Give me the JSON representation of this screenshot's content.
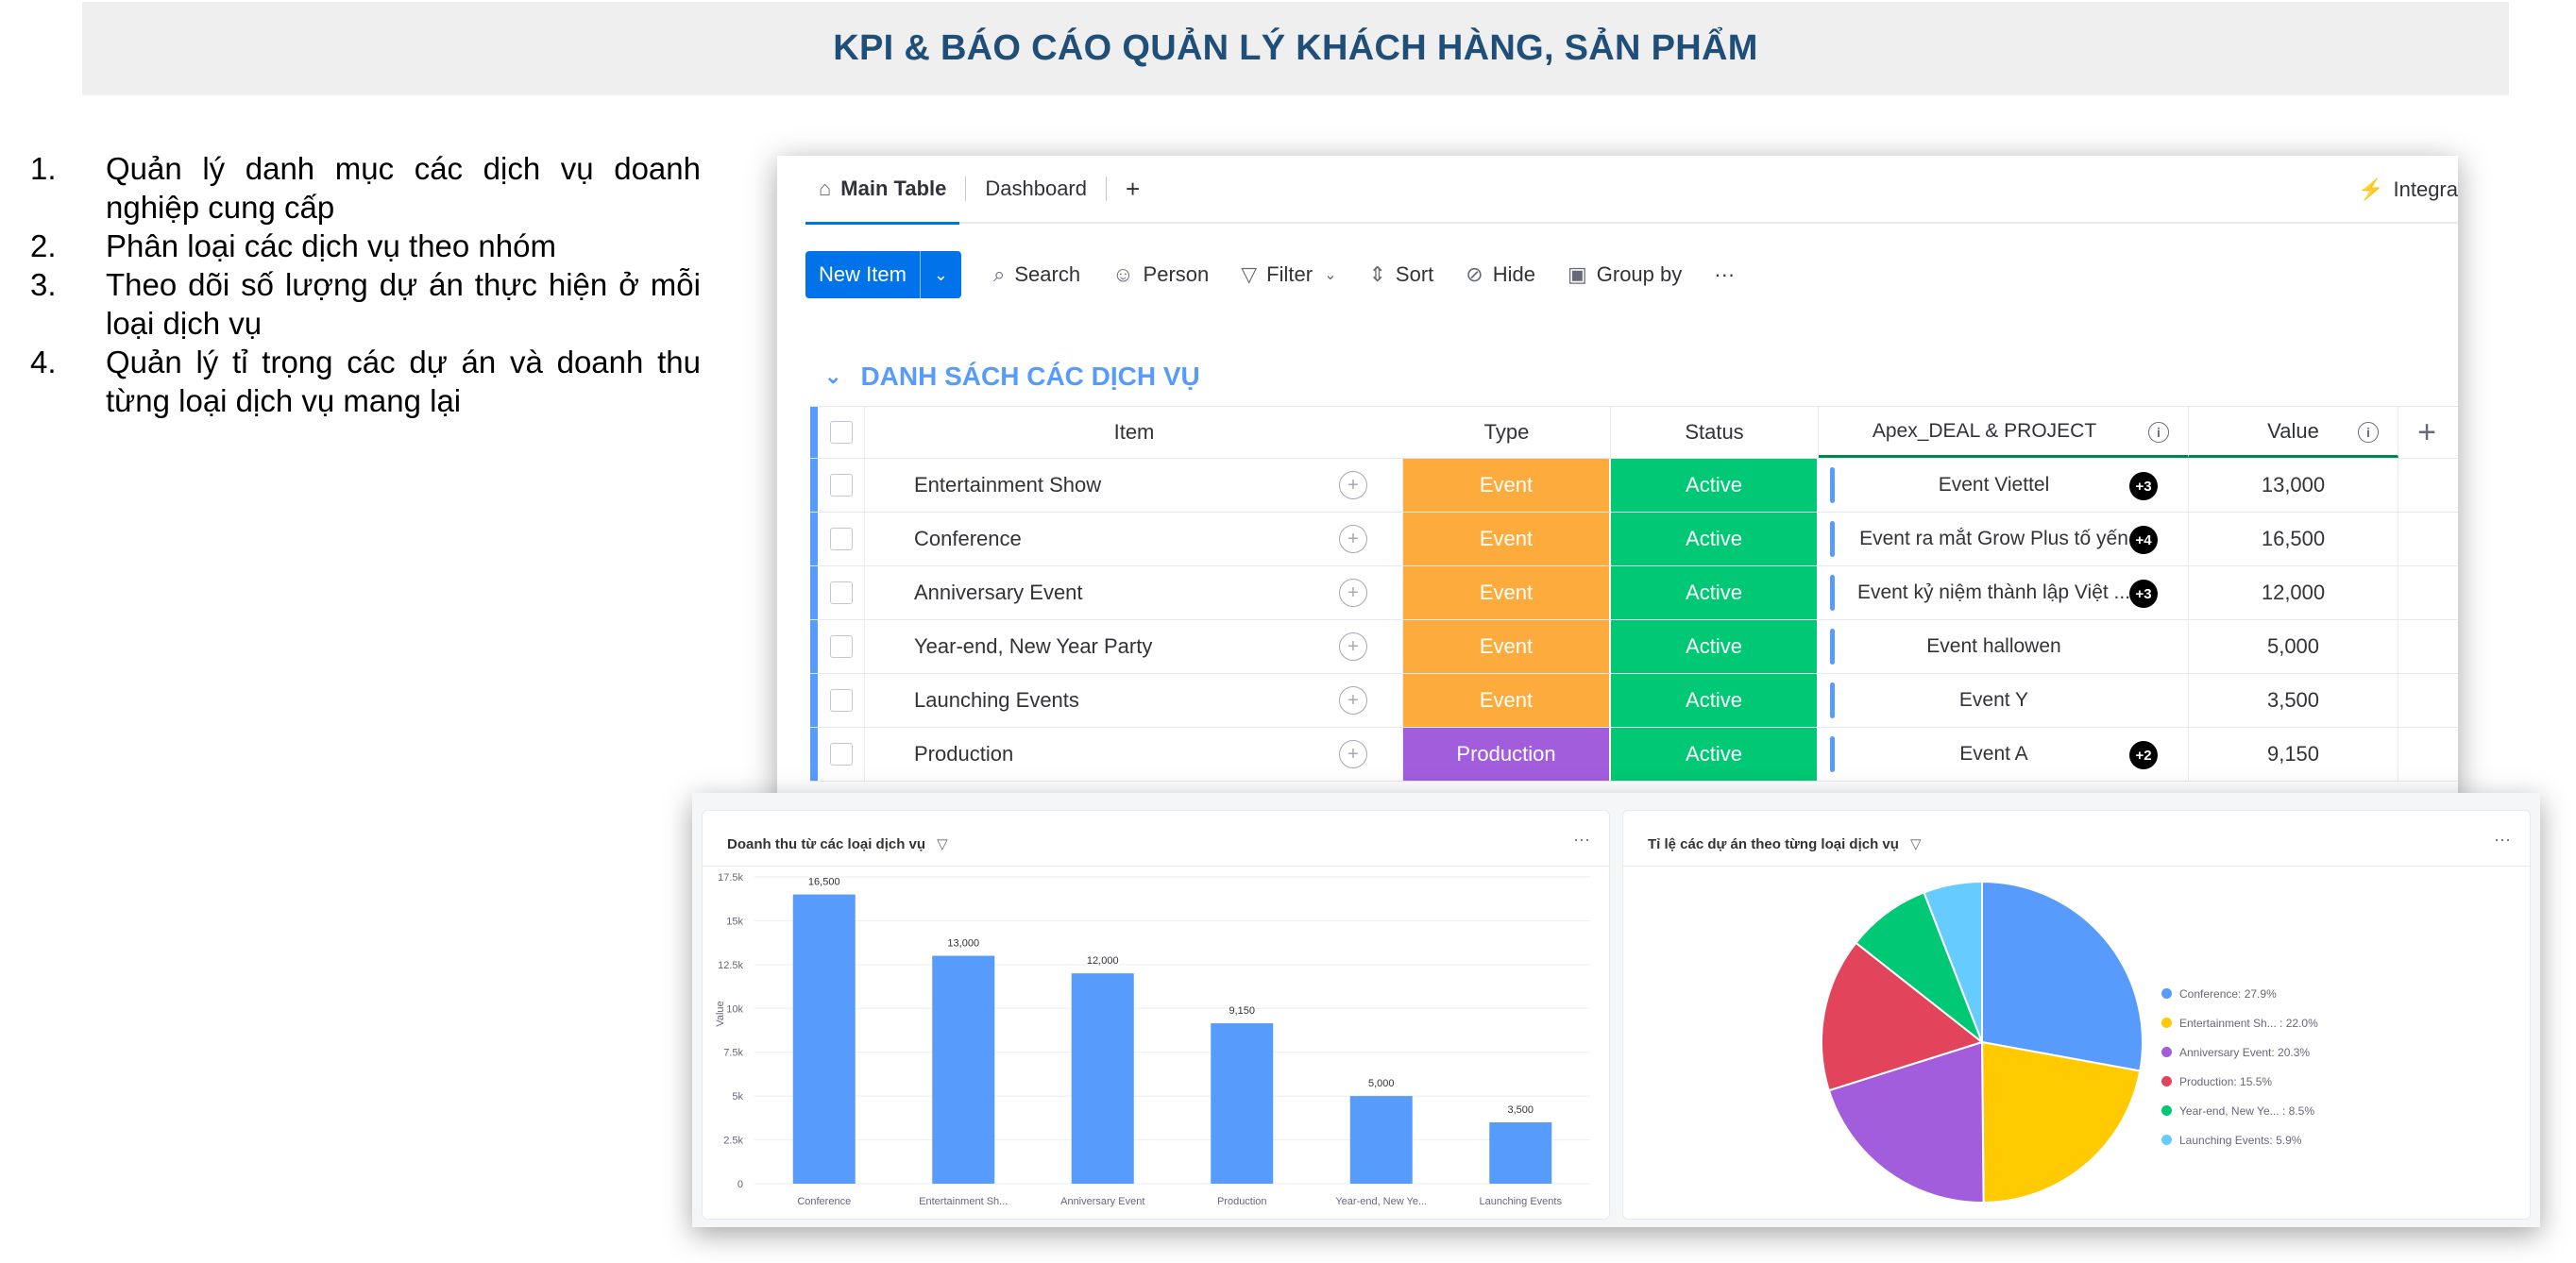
{
  "banner": {
    "title": "KPI & BÁO CÁO QUẢN LÝ KHÁCH HÀNG, SẢN PHẨM"
  },
  "notes": [
    {
      "num": "1.",
      "text": "Quản lý danh mục các dịch vụ doanh nghiệp cung cấp"
    },
    {
      "num": "2.",
      "text": "Phân loại các dịch vụ theo nhóm"
    },
    {
      "num": "3.",
      "text": "Theo dõi số lượng dự án thực hiện ở mỗi loại dịch vụ"
    },
    {
      "num": "4.",
      "text": "Quản lý tỉ trọng các dự án và doanh thu từng loại dịch vụ mang lại"
    }
  ],
  "board": {
    "tabs": {
      "main": "Main Table",
      "dashboard": "Dashboard",
      "add": "+",
      "integrate": "Integra"
    },
    "toolbar": {
      "new_item": "New Item",
      "search": "Search",
      "person": "Person",
      "filter": "Filter",
      "sort": "Sort",
      "hide": "Hide",
      "group_by": "Group by",
      "more": "···"
    },
    "group_title": "DANH SÁCH CÁC DỊCH VỤ",
    "columns": {
      "item": "Item",
      "type": "Type",
      "status": "Status",
      "deal": "Apex_DEAL & PROJECT",
      "value": "Value"
    },
    "rows": [
      {
        "item": "Entertainment Show",
        "type": "Event",
        "status": "Active",
        "deal": "Event Viettel",
        "badge": "+3",
        "value": "13,000"
      },
      {
        "item": "Conference",
        "type": "Event",
        "status": "Active",
        "deal": "Event ra mắt Grow Plus tố yến",
        "badge": "+4",
        "value": "16,500"
      },
      {
        "item": "Anniversary Event",
        "type": "Event",
        "status": "Active",
        "deal": "Event kỷ niệm thành lập Việt ...",
        "badge": "+3",
        "value": "12,000"
      },
      {
        "item": "Year-end, New Year Party",
        "type": "Event",
        "status": "Active",
        "deal": "Event hallowen",
        "badge": "",
        "value": "5,000"
      },
      {
        "item": "Launching Events",
        "type": "Event",
        "status": "Active",
        "deal": "Event Y",
        "badge": "",
        "value": "3,500"
      },
      {
        "item": "Production",
        "type": "Production",
        "status": "Active",
        "deal": "Event A",
        "badge": "+2",
        "value": "9,150"
      }
    ],
    "colors": {
      "event": "#fdab3d",
      "production": "#a25ddc",
      "active": "#00c875",
      "accent": "#0073ea",
      "group": "#579bfc"
    }
  },
  "chart_data": [
    {
      "type": "bar",
      "title": "Doanh thu từ các loại dịch vụ",
      "ylabel": "Value",
      "categories": [
        "Conference",
        "Entertainment Sh...",
        "Anniversary Event",
        "Production",
        "Year-end, New Ye...",
        "Launching Events"
      ],
      "values": [
        16500,
        13000,
        12000,
        9150,
        5000,
        3500
      ],
      "value_labels": [
        "16,500",
        "13,000",
        "12,000",
        "9,150",
        "5,000",
        "3,500"
      ],
      "ylim": [
        0,
        17500
      ],
      "yticks": [
        0,
        2500,
        5000,
        7500,
        10000,
        12500,
        15000,
        17500
      ],
      "ytick_labels": [
        "0",
        "2.5k",
        "5k",
        "7.5k",
        "10k",
        "12.5k",
        "15k",
        "17.5k"
      ],
      "color": "#579bfc",
      "grid": true
    },
    {
      "type": "pie",
      "title": "Tỉ lệ các dự án theo từng loại dịch vụ",
      "slices": [
        {
          "label": "Conference: 27.9%",
          "value": 27.9,
          "color": "#579bfc"
        },
        {
          "label": "Entertainment Sh... : 22.0%",
          "value": 22.0,
          "color": "#ffcb00"
        },
        {
          "label": "Anniversary Event: 20.3%",
          "value": 20.3,
          "color": "#a25ddc"
        },
        {
          "label": "Production: 15.5%",
          "value": 15.5,
          "color": "#e2445c"
        },
        {
          "label": "Year-end, New Ye... : 8.5%",
          "value": 8.5,
          "color": "#00c875"
        },
        {
          "label": "Launching Events: 5.9%",
          "value": 5.9,
          "color": "#66ccff"
        }
      ],
      "legend": "right"
    }
  ]
}
